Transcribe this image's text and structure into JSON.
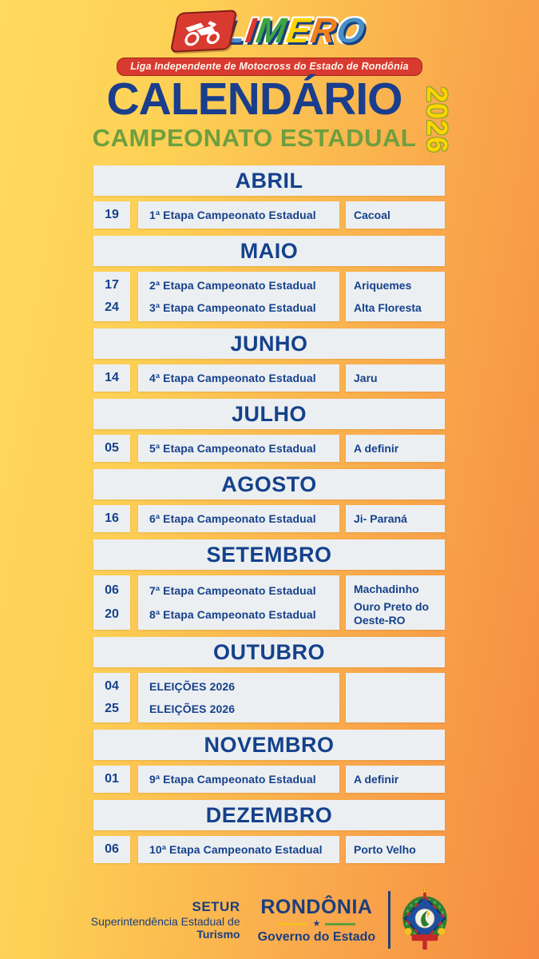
{
  "logo": {
    "badge_icon": "motocross-bike-icon",
    "letters": [
      {
        "char": "L",
        "color": "#4a90c8"
      },
      {
        "char": "I",
        "color": "#e0392e"
      },
      {
        "char": "M",
        "color": "#3fa53f"
      },
      {
        "char": "E",
        "color": "#ffd400"
      },
      {
        "char": "R",
        "color": "#f08020"
      },
      {
        "char": "O",
        "color": "#4a90c8"
      }
    ],
    "tagline": "Liga Independente de Motocross do Estado de Rondônia"
  },
  "title": {
    "main": "CALENDÁRIO",
    "year": "2026",
    "subtitle": "CAMPEONATO ESTADUAL"
  },
  "months": [
    {
      "name": "ABRIL",
      "events": [
        {
          "day": "19",
          "description": "1ª Etapa Campeonato Estadual",
          "location": "Cacoal"
        }
      ]
    },
    {
      "name": "MAIO",
      "events": [
        {
          "day": "17",
          "description": "2ª Etapa Campeonato Estadual",
          "location": "Ariquemes"
        },
        {
          "day": "24",
          "description": "3ª Etapa Campeonato Estadual",
          "location": "Alta Floresta"
        }
      ]
    },
    {
      "name": "JUNHO",
      "events": [
        {
          "day": "14",
          "description": "4ª Etapa Campeonato Estadual",
          "location": "Jaru"
        }
      ]
    },
    {
      "name": "JULHO",
      "events": [
        {
          "day": "05",
          "description": "5ª Etapa Campeonato Estadual",
          "location": "A definir"
        }
      ]
    },
    {
      "name": "AGOSTO",
      "events": [
        {
          "day": "16",
          "description": "6ª Etapa Campeonato Estadual",
          "location": "Ji- Paraná"
        }
      ]
    },
    {
      "name": "SETEMBRO",
      "events": [
        {
          "day": "06",
          "description": "7ª Etapa Campeonato Estadual",
          "location": "Machadinho"
        },
        {
          "day": "20",
          "description": "8ª Etapa Campeonato Estadual",
          "location": "Ouro Preto do Oeste-RO"
        }
      ]
    },
    {
      "name": "OUTUBRO",
      "events": [
        {
          "day": "04",
          "description": "ELEIÇÕES 2026",
          "location": ""
        },
        {
          "day": "25",
          "description": "ELEIÇÕES 2026",
          "location": ""
        }
      ]
    },
    {
      "name": "NOVEMBRO",
      "events": [
        {
          "day": "01",
          "description": "9ª Etapa Campeonato Estadual",
          "location": "A definir"
        }
      ]
    },
    {
      "name": "DEZEMBRO",
      "events": [
        {
          "day": "06",
          "description": "10ª Etapa Campeonato Estadual",
          "location": "Porto Velho"
        }
      ]
    }
  ],
  "footer": {
    "setur": {
      "acronym": "SETUR",
      "line1": "Superintendência Estadual de",
      "line2": "Turismo"
    },
    "government": {
      "name": "RONDÔNIA",
      "separator_star": "★",
      "subtitle": "Governo do Estado"
    },
    "emblem_icon": "rondonia-coat-of-arms"
  },
  "colors": {
    "background_left": "#ffda5e",
    "background_right": "#f58a41",
    "box_gray": "#eceff1",
    "navy": "#15418c",
    "title_navy": "#1a3e8c",
    "green": "#6e9f3f",
    "banner_red": "#d93a30",
    "year_yellow": "#ffd400"
  }
}
